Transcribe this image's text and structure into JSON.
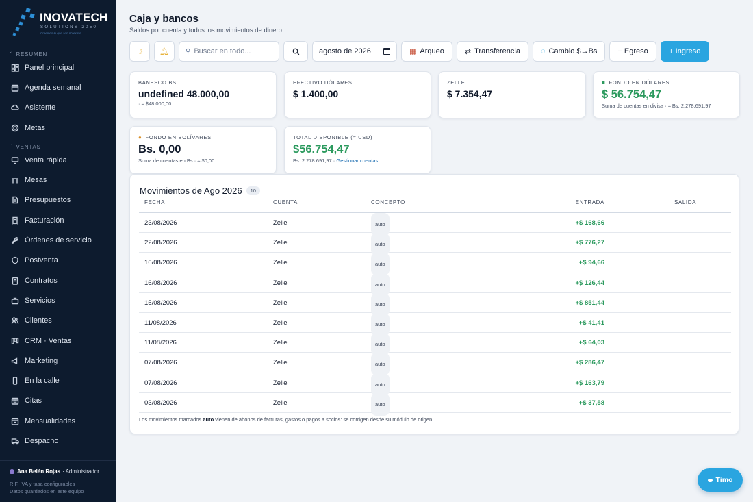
{
  "brand": {
    "name": "INOVATECH",
    "sub": "SOLUTIONS 2050",
    "tagline": "Creemos lo que aún no existe"
  },
  "sidebar": {
    "sections": [
      {
        "title": "RESUMEN",
        "items": [
          {
            "label": "Panel principal",
            "icon": "dashboard-icon"
          },
          {
            "label": "Agenda semanal",
            "icon": "calendar-icon"
          },
          {
            "label": "Asistente",
            "icon": "cloud-icon"
          },
          {
            "label": "Metas",
            "icon": "target-icon"
          }
        ]
      },
      {
        "title": "VENTAS",
        "items": [
          {
            "label": "Venta rápida",
            "icon": "monitor-icon"
          },
          {
            "label": "Mesas",
            "icon": "table-icon"
          },
          {
            "label": "Presupuestos",
            "icon": "document-icon"
          },
          {
            "label": "Facturación",
            "icon": "receipt-icon"
          },
          {
            "label": "Órdenes de servicio",
            "icon": "wrench-icon"
          },
          {
            "label": "Postventa",
            "icon": "shield-icon"
          },
          {
            "label": "Contratos",
            "icon": "contract-icon"
          },
          {
            "label": "Servicios",
            "icon": "briefcase-icon"
          },
          {
            "label": "Clientes",
            "icon": "users-icon"
          },
          {
            "label": "CRM · Ventas",
            "icon": "kanban-icon"
          },
          {
            "label": "Marketing",
            "icon": "megaphone-icon"
          },
          {
            "label": "En la calle",
            "icon": "phone-icon"
          },
          {
            "label": "Citas",
            "icon": "calendar-check-icon"
          },
          {
            "label": "Mensualidades",
            "icon": "calendar-repeat-icon"
          },
          {
            "label": "Despacho",
            "icon": "truck-icon"
          }
        ]
      }
    ],
    "footer": {
      "user_name": "Ana Belén Rojas",
      "user_role": "· Administrador",
      "line1": "RIF, IVA y tasa configurables",
      "line2": "Datos guardados en este equipo"
    }
  },
  "header": {
    "title": "Caja y bancos",
    "subtitle": "Saldos por cuenta y todos los movimientos de dinero"
  },
  "toolbar": {
    "search_placeholder": "Buscar en todo...",
    "date_value": "agosto de 2026",
    "arqueo": "Arqueo",
    "transferencia": "Transferencia",
    "cambio": "Cambio $→Bs",
    "egreso": "− Egreso",
    "ingreso": "+ Ingreso"
  },
  "cards": {
    "banesco": {
      "label": "BANESCO BS",
      "value": "undefined 48.000,00",
      "note": "· ≈ $48.000,00"
    },
    "efectivo": {
      "label": "EFECTIVO DÓLARES",
      "value": "$ 1.400,00"
    },
    "zelle": {
      "label": "ZELLE",
      "value": "$ 7.354,47"
    },
    "fondo_usd": {
      "label": "FONDO EN DÓLARES",
      "value": "$ 56.754,47",
      "note": "Suma de cuentas en divisa · ≈ Bs. 2.278.691,97"
    },
    "fondo_bs": {
      "label": "FONDO EN BOLÍVARES",
      "value": "Bs. 0,00",
      "note": "Suma de cuentas en Bs · ≈ $0,00"
    },
    "total": {
      "label": "TOTAL DISPONIBLE (≈ USD)",
      "value": "$56.754,47",
      "note": "Bs. 2.278.691,97 · ",
      "link": "Gestionar cuentas"
    }
  },
  "movements": {
    "title": "Movimientos de Ago 2026",
    "count": "10",
    "columns": {
      "fecha": "FECHA",
      "cuenta": "CUENTA",
      "concepto": "CONCEPTO",
      "entrada": "ENTRADA",
      "salida": "SALIDA"
    },
    "rows": [
      {
        "fecha": "23/08/2026",
        "cuenta": "Zelle",
        "concepto": "auto",
        "entrada": "+$ 168,66",
        "salida": ""
      },
      {
        "fecha": "22/08/2026",
        "cuenta": "Zelle",
        "concepto": "auto",
        "entrada": "+$ 776,27",
        "salida": ""
      },
      {
        "fecha": "16/08/2026",
        "cuenta": "Zelle",
        "concepto": "auto",
        "entrada": "+$ 94,66",
        "salida": ""
      },
      {
        "fecha": "16/08/2026",
        "cuenta": "Zelle",
        "concepto": "auto",
        "entrada": "+$ 126,44",
        "salida": ""
      },
      {
        "fecha": "15/08/2026",
        "cuenta": "Zelle",
        "concepto": "auto",
        "entrada": "+$ 851,44",
        "salida": ""
      },
      {
        "fecha": "11/08/2026",
        "cuenta": "Zelle",
        "concepto": "auto",
        "entrada": "+$ 41,41",
        "salida": ""
      },
      {
        "fecha": "11/08/2026",
        "cuenta": "Zelle",
        "concepto": "auto",
        "entrada": "+$ 64,03",
        "salida": ""
      },
      {
        "fecha": "07/08/2026",
        "cuenta": "Zelle",
        "concepto": "auto",
        "entrada": "+$ 286,47",
        "salida": ""
      },
      {
        "fecha": "07/08/2026",
        "cuenta": "Zelle",
        "concepto": "auto",
        "entrada": "+$ 163,79",
        "salida": ""
      },
      {
        "fecha": "03/08/2026",
        "cuenta": "Zelle",
        "concepto": "auto",
        "entrada": "+$ 37,58",
        "salida": ""
      }
    ],
    "footnote_pre": "Los movimientos marcados ",
    "footnote_bold": "auto",
    "footnote_post": " vienen de abonos de facturas, gastos o pagos a socios: se corrigen desde su módulo de origen."
  },
  "chat": {
    "label": "Timo"
  },
  "colors": {
    "sidebar": "#0d1b2e",
    "accent": "#2aa5e0",
    "positive": "#2c9a5e",
    "link": "#2271b3"
  }
}
